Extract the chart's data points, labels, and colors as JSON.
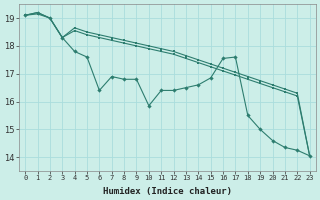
{
  "xlabel": "Humidex (Indice chaleur)",
  "bg_color": "#cceee8",
  "grid_color": "#aadddd",
  "line_color": "#2d7d6f",
  "xlim": [
    -0.5,
    23.5
  ],
  "ylim": [
    13.5,
    19.5
  ],
  "yticks": [
    14,
    15,
    16,
    17,
    18,
    19
  ],
  "xticks": [
    0,
    1,
    2,
    3,
    4,
    5,
    6,
    7,
    8,
    9,
    10,
    11,
    12,
    13,
    14,
    15,
    16,
    17,
    18,
    19,
    20,
    21,
    22,
    23
  ],
  "x": [
    0,
    1,
    2,
    3,
    4,
    5,
    6,
    7,
    8,
    9,
    10,
    11,
    12,
    13,
    14,
    15,
    16,
    17,
    18,
    19,
    20,
    21,
    22,
    23
  ],
  "jagged_y": [
    19.1,
    19.2,
    19.0,
    18.3,
    17.8,
    17.6,
    16.4,
    16.9,
    16.8,
    16.8,
    15.85,
    16.4,
    16.4,
    16.5,
    16.6,
    16.85,
    17.55,
    17.6,
    15.5,
    15.0,
    14.6,
    14.35,
    14.25,
    14.05
  ],
  "upper_y": [
    19.1,
    19.2,
    19.0,
    18.3,
    18.65,
    18.5,
    18.4,
    18.3,
    18.2,
    18.1,
    18.0,
    17.9,
    17.8,
    17.65,
    17.5,
    17.35,
    17.2,
    17.05,
    16.9,
    16.75,
    16.6,
    16.45,
    16.3,
    14.05
  ],
  "lower_y": [
    19.1,
    19.15,
    19.0,
    18.3,
    18.55,
    18.4,
    18.3,
    18.2,
    18.1,
    18.0,
    17.9,
    17.8,
    17.7,
    17.55,
    17.4,
    17.25,
    17.1,
    16.95,
    16.8,
    16.65,
    16.5,
    16.35,
    16.2,
    14.05
  ]
}
